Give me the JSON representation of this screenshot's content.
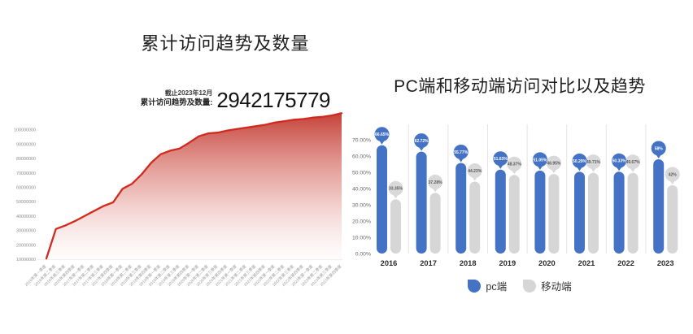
{
  "left_panel": {
    "stats": {
      "as_of": "截止2023年12月",
      "label": "累计访问趋势及数量:",
      "value": "2942175779"
    }
  },
  "chart_data": [
    {
      "type": "area",
      "title": "累计访问趋势及数量",
      "x": [
        "2016年第一季度",
        "2016年第二季度",
        "2016年第三季度",
        "2016年第四季度",
        "2017年第一季度",
        "2017年第二季度",
        "2017年第三季度",
        "2017年第四季度",
        "2018年第一季度",
        "2018年第二季度",
        "2018年第三季度",
        "2018年第四季度",
        "2019年第一季度",
        "2019年第二季度",
        "2019年第三季度",
        "2019年第四季度",
        "2020年第一季度",
        "2020年第二季度",
        "2020年第三季度",
        "2020年第四季度",
        "2021年第一季度",
        "2021年第二季度",
        "2021年第三季度",
        "2021年第四季度",
        "2022年第一季度",
        "2022年第二季度",
        "2022年第三季度",
        "2022年第四季度",
        "2023年第一季度",
        "2023年第二季度",
        "2023年第三季度",
        "2023年第四季度"
      ],
      "values": [
        10500000,
        31000000,
        33500000,
        36500000,
        40000000,
        43500000,
        47000000,
        49500000,
        59000000,
        62500000,
        69000000,
        77000000,
        83000000,
        85500000,
        87000000,
        91000000,
        95500000,
        97500000,
        98000000,
        99500000,
        100500000,
        101500000,
        102500000,
        103500000,
        105000000,
        106000000,
        107000000,
        107500000,
        108500000,
        109000000,
        110000000,
        111500000
      ],
      "yticks": [
        10000000,
        20000000,
        30000000,
        40000000,
        50000000,
        60000000,
        70000000,
        80000000,
        90000000,
        100000000
      ],
      "ylim": [
        10000000,
        112000000
      ],
      "grid": false,
      "line_color": "#d2291d",
      "fill_top_color": "#c23a31",
      "fill_bottom_color": "#fdf5f3"
    },
    {
      "type": "bar",
      "title": "PC端和移动端访问对比以及趋势",
      "categories": [
        "2016",
        "2017",
        "2018",
        "2019",
        "2020",
        "2021",
        "2022",
        "2023"
      ],
      "series": [
        {
          "name": "pc端",
          "color": "#4472c4",
          "bubble_color": "#4472c4",
          "label_color": "#ffffff",
          "values": [
            66.65,
            62.72,
            55.77,
            51.63,
            51.05,
            50.29,
            50.33,
            58
          ],
          "labels": [
            "66.65%",
            "62.72%",
            "55.77%",
            "51.63%",
            "51.05%",
            "50.29%",
            "50.33%",
            "58%"
          ]
        },
        {
          "name": "移动端",
          "color": "#d6d6d6",
          "bubble_color": "#d9d9d9",
          "label_color": "#595959",
          "values": [
            33.35,
            37.28,
            44.23,
            48.37,
            48.95,
            49.71,
            49.67,
            42
          ],
          "labels": [
            "33.35%",
            "37.28%",
            "44.23%",
            "48.37%",
            "48.95%",
            "49.71%",
            "49.67%",
            "42%"
          ]
        }
      ],
      "yticks": [
        "0.00%",
        "10.00%",
        "20.00%",
        "30.00%",
        "40.00%",
        "50.00%",
        "60.00%",
        "70.00%"
      ],
      "ylim": [
        0,
        70
      ],
      "grid": false,
      "legend_position": "bottom"
    }
  ]
}
